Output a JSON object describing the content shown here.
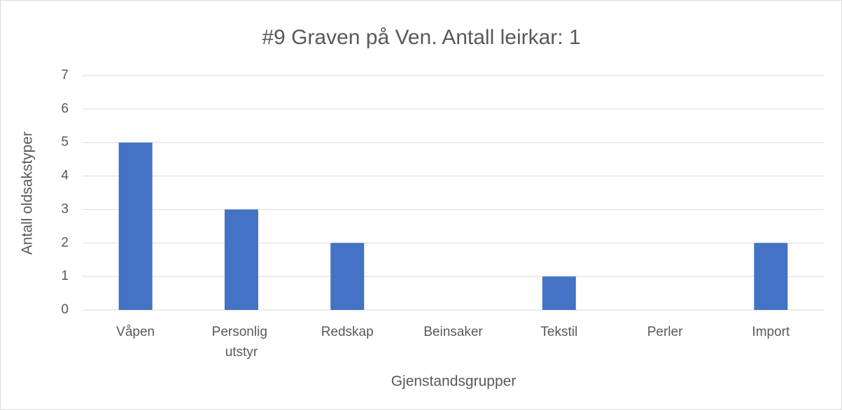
{
  "chart_data": {
    "type": "bar",
    "title": "#9 Graven på Ven. Antall leirkar: 1",
    "x_label": "Gjenstandsgrupper",
    "y_label": "Antall oldsakstyper",
    "categories": [
      "Våpen",
      "Personlig utstyr",
      "Redskap",
      "Beinsaker",
      "Tekstil",
      "Perler",
      "Import"
    ],
    "values": [
      5,
      3,
      2,
      0,
      1,
      0,
      2
    ],
    "color": "#4472c4",
    "ylim": [
      0,
      7
    ],
    "yticks": [
      0,
      1,
      2,
      3,
      4,
      5,
      6,
      7
    ],
    "grid": true
  }
}
